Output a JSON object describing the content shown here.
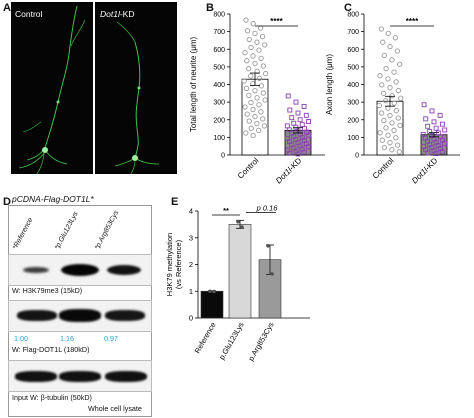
{
  "panels": {
    "A": {
      "label": "A",
      "control": "Control",
      "kd_prefix": "Dot1l",
      "kd_suffix": "-KD"
    },
    "B": {
      "label": "B"
    },
    "C": {
      "label": "C"
    },
    "D": {
      "label": "D",
      "header": "pCDNA-Flag-DOT1L*",
      "lanes": [
        "*Reference",
        "*p.Glu123Lys",
        "*p.Arg853Cys"
      ],
      "blot1_caption": "W: H3K79me3 (15kD)",
      "blot2_caption": "W: Flag-DOT1L (180kD)",
      "quant": [
        "1.00",
        "1.16",
        "0.97"
      ],
      "blot3_caption": "Input W: β-tubulin (50kD)",
      "footer": "Whole cell lysate"
    },
    "E": {
      "label": "E"
    }
  },
  "chart_data": [
    {
      "type": "bar",
      "panel": "B",
      "ylabel": "Total length of neurite (μm)",
      "ylim": [
        0,
        800
      ],
      "yticks": [
        0,
        100,
        200,
        300,
        400,
        500,
        600,
        700,
        800
      ],
      "categories": [
        "Control",
        "Dot1l-KD"
      ],
      "values": [
        430,
        140
      ],
      "errors": [
        35,
        15
      ],
      "bar_colors": [
        "#ffffff",
        "#8c8c8c"
      ],
      "point_colors": [
        "#9a9a9a",
        "#8c3fb3"
      ],
      "points": [
        [
          765,
          745,
          720,
          705,
          690,
          672,
          655,
          640,
          625,
          610,
          595,
          580,
          562,
          548,
          535,
          520,
          505,
          490,
          475,
          462,
          448,
          435,
          420,
          405,
          392,
          378,
          365,
          352,
          338,
          325,
          312,
          298,
          285,
          272,
          258,
          245,
          232,
          218,
          205,
          192,
          178,
          165,
          152,
          140,
          125,
          110
        ],
        [
          335,
          300,
          275,
          255,
          238,
          225,
          212,
          200,
          190,
          180,
          172,
          165,
          158,
          150,
          143,
          137,
          130,
          124,
          118,
          112,
          106,
          100,
          94,
          88,
          82,
          76,
          70,
          64,
          58,
          52,
          46,
          40,
          34,
          28,
          22,
          16,
          10,
          6
        ]
      ],
      "significance": "****"
    },
    {
      "type": "bar",
      "panel": "C",
      "ylabel": "Axon length (μm)",
      "ylim": [
        0,
        800
      ],
      "yticks": [
        0,
        100,
        200,
        300,
        400,
        500,
        600,
        700,
        800
      ],
      "categories": [
        "Control",
        "Dot1l-KD"
      ],
      "values": [
        305,
        115
      ],
      "errors": [
        28,
        12
      ],
      "bar_colors": [
        "#ffffff",
        "#8c8c8c"
      ],
      "point_colors": [
        "#9a9a9a",
        "#8c3fb3"
      ],
      "points": [
        [
          715,
          690,
          665,
          640,
          615,
          590,
          565,
          540,
          515,
          490,
          470,
          450,
          432,
          415,
          398,
          382,
          366,
          350,
          336,
          322,
          308,
          294,
          280,
          266,
          252,
          238,
          224,
          210,
          196,
          182,
          168,
          154,
          140,
          126,
          112,
          98,
          84,
          70,
          56,
          42,
          30,
          18
        ],
        [
          285,
          250,
          225,
          205,
          188,
          175,
          163,
          152,
          142,
          133,
          125,
          117,
          110,
          103,
          96,
          90,
          84,
          78,
          72,
          66,
          60,
          54,
          48,
          42,
          36,
          30,
          24,
          18,
          12,
          8
        ]
      ],
      "significance": "****"
    },
    {
      "type": "bar",
      "panel": "E",
      "ylabel": "H3K79 methylation\n(vs Reference)",
      "ylim": [
        0,
        4
      ],
      "yticks": [
        0,
        1,
        2,
        3,
        4
      ],
      "categories": [
        "Reference",
        "p.Glu123Lys",
        "p.Arg853Cys"
      ],
      "values": [
        1.0,
        3.5,
        2.18
      ],
      "errors": [
        0.02,
        0.15,
        0.55
      ],
      "bar_colors": [
        "#0a0a0a",
        "#d8d8d8",
        "#9a9a9a"
      ],
      "points": [
        [
          1.0,
          0.99
        ],
        [
          3.6,
          3.4
        ],
        [
          2.7,
          1.65
        ]
      ],
      "annotations": [
        "**",
        "p 0.16"
      ]
    }
  ]
}
